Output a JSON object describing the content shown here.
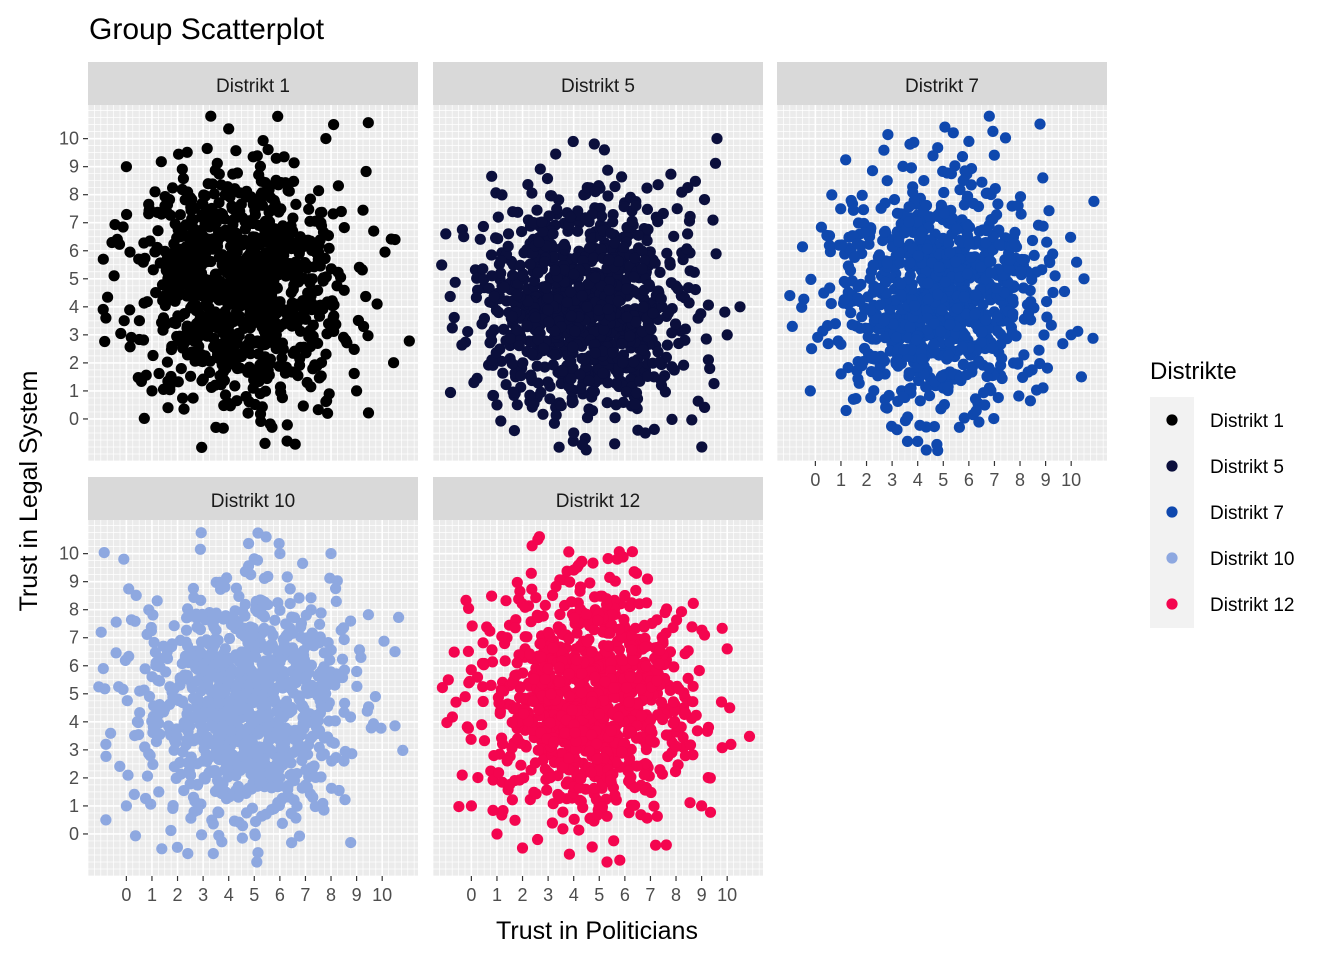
{
  "chart_data": {
    "type": "scatter",
    "title": "Group Scatterplot",
    "xlabel": "Trust in Politicians",
    "ylabel": "Trust in Legal System",
    "xlim": [
      -1.5,
      11.4
    ],
    "ylim": [
      -1.5,
      11.2
    ],
    "x_ticks": [
      "0",
      "1",
      "2",
      "3",
      "4",
      "5",
      "6",
      "7",
      "8",
      "9",
      "10"
    ],
    "y_ticks": [
      "0",
      "1",
      "2",
      "3",
      "4",
      "5",
      "6",
      "7",
      "8",
      "9",
      "10"
    ],
    "grid": true,
    "facet_layout": {
      "ncol": 3,
      "nrow": 2
    },
    "legend": {
      "title": "Distrikte",
      "placement": "right"
    },
    "panel_background": "#ebebeb",
    "strip_background": "#d9d9d9",
    "series": [
      {
        "name": "Distrikt 1",
        "color": "#000000",
        "n_points": 1000,
        "center": [
          4.5,
          4.6
        ],
        "spread": [
          2.05,
          2.05
        ],
        "outliers": [
          [
            3.3,
            10.8
          ],
          [
            8.1,
            10.5
          ],
          [
            7.8,
            10.0
          ],
          [
            0.0,
            9.0
          ],
          [
            -0.9,
            5.7
          ],
          [
            -0.8,
            3.6
          ],
          [
            10.5,
            6.4
          ],
          [
            9.8,
            4.1
          ],
          [
            6.6,
            -0.9
          ],
          [
            3.5,
            -0.3
          ],
          [
            1.0,
            1.0
          ],
          [
            9.0,
            1.0
          ]
        ]
      },
      {
        "name": "Distrikt 5",
        "color": "#0b0f3c",
        "n_points": 1000,
        "center": [
          4.5,
          4.0
        ],
        "spread": [
          2.0,
          2.05
        ],
        "outliers": [
          [
            9.6,
            10.0
          ],
          [
            5.2,
            9.6
          ],
          [
            -1.0,
            6.6
          ],
          [
            -0.3,
            6.5
          ],
          [
            10.5,
            4.0
          ],
          [
            10.0,
            3.0
          ],
          [
            4.0,
            -0.5
          ],
          [
            6.8,
            -0.5
          ],
          [
            0.1,
            1.3
          ],
          [
            1.0,
            0.5
          ]
        ]
      },
      {
        "name": "Distrikt 7",
        "color": "#0f48ae",
        "n_points": 1000,
        "center": [
          4.8,
          4.4
        ],
        "spread": [
          2.0,
          2.0
        ],
        "outliers": [
          [
            6.8,
            10.8
          ],
          [
            6.0,
            9.9
          ],
          [
            3.7,
            9.8
          ],
          [
            -1.0,
            4.4
          ],
          [
            -0.9,
            3.3
          ],
          [
            10.5,
            5.0
          ],
          [
            10.4,
            1.5
          ],
          [
            3.6,
            -0.8
          ],
          [
            4.0,
            -0.8
          ],
          [
            -0.2,
            1.0
          ],
          [
            1.2,
            0.3
          ]
        ]
      },
      {
        "name": "Distrikt 10",
        "color": "#8ea8e0",
        "n_points": 1000,
        "center": [
          4.6,
          4.6
        ],
        "spread": [
          2.05,
          2.05
        ],
        "outliers": [
          [
            -0.1,
            9.8
          ],
          [
            6.0,
            10.0
          ],
          [
            8.0,
            10.0
          ],
          [
            -0.9,
            5.9
          ],
          [
            -0.8,
            3.2
          ],
          [
            10.5,
            6.5
          ],
          [
            -0.8,
            0.5
          ],
          [
            5.1,
            -1.0
          ],
          [
            2.4,
            -0.7
          ],
          [
            3.4,
            -0.7
          ],
          [
            0.0,
            1.0
          ]
        ]
      },
      {
        "name": "Distrikt 12",
        "color": "#f4054f",
        "n_points": 1000,
        "center": [
          4.6,
          4.8
        ],
        "spread": [
          2.0,
          2.0
        ],
        "outliers": [
          [
            5.7,
            9.8
          ],
          [
            4.3,
            9.7
          ],
          [
            -0.9,
            5.5
          ],
          [
            -0.6,
            4.7
          ],
          [
            10.1,
            4.5
          ],
          [
            10.0,
            6.6
          ],
          [
            5.3,
            -1.0
          ],
          [
            7.2,
            -0.4
          ],
          [
            2.0,
            -0.5
          ],
          [
            1.0,
            0.0
          ],
          [
            0.0,
            1.0
          ],
          [
            9.0,
            1.0
          ]
        ]
      }
    ]
  }
}
